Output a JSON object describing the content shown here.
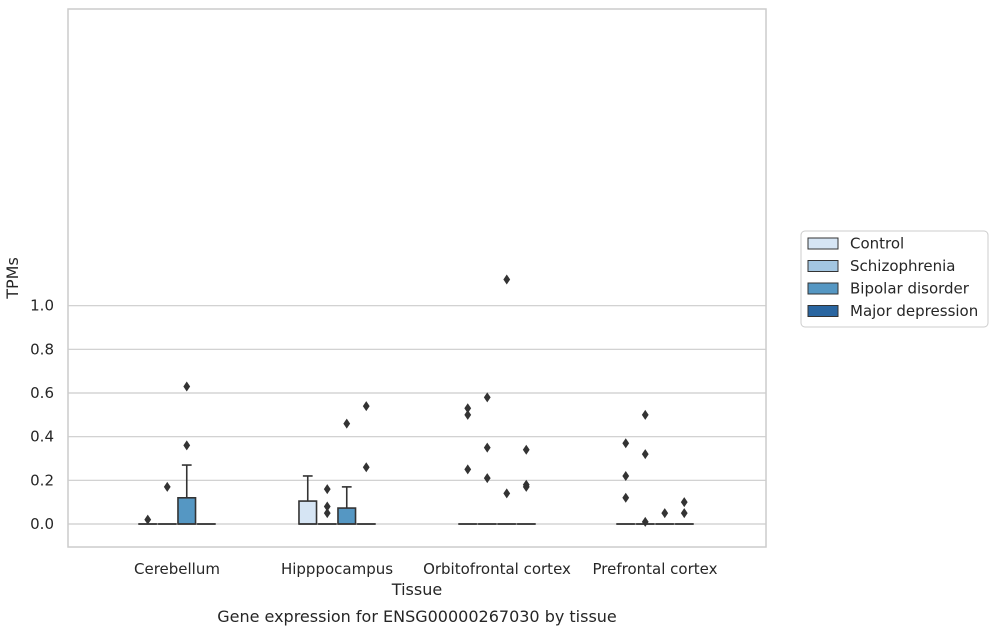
{
  "caption": "Gene expression for ENSG00000267030 by tissue",
  "chart_data": {
    "type": "box",
    "xlabel": "Tissue",
    "ylabel": "TPMs",
    "ylim": [
      -0.055,
      1.17
    ],
    "yticks": [
      0.0,
      0.2,
      0.4,
      0.6,
      0.8,
      1.0
    ],
    "ytick_labels": [
      "0.0",
      "0.2",
      "0.4",
      "0.6",
      "0.8",
      "1.0"
    ],
    "grid": true,
    "legend_position": "right",
    "categories": [
      "Cerebellum",
      "Hipppocampus",
      "Orbitofrontal cortex",
      "Prefrontal cortex"
    ],
    "series": [
      {
        "name": "Control",
        "color": "#d6e5f4",
        "boxes": [
          {
            "q1": 0,
            "median": 0,
            "q3": 0,
            "whisker_low": 0,
            "whisker_high": 0,
            "outliers": [
              0.02
            ]
          },
          {
            "q1": 0,
            "median": 0,
            "q3": 0.105,
            "whisker_low": 0,
            "whisker_high": 0.22,
            "outliers": []
          },
          {
            "q1": 0,
            "median": 0,
            "q3": 0,
            "whisker_low": 0,
            "whisker_high": 0,
            "outliers": [
              0.53,
              0.5,
              0.25
            ]
          },
          {
            "q1": 0,
            "median": 0,
            "q3": 0,
            "whisker_low": 0,
            "whisker_high": 0,
            "outliers": [
              0.37,
              0.22,
              0.12
            ]
          }
        ]
      },
      {
        "name": "Schizophrenia",
        "color": "#a3c6e1",
        "boxes": [
          {
            "q1": 0,
            "median": 0,
            "q3": 0,
            "whisker_low": 0,
            "whisker_high": 0,
            "outliers": [
              0.17
            ]
          },
          {
            "q1": 0,
            "median": 0,
            "q3": 0,
            "whisker_low": 0,
            "whisker_high": 0,
            "outliers": [
              0.16,
              0.08,
              0.05
            ]
          },
          {
            "q1": 0,
            "median": 0,
            "q3": 0,
            "whisker_low": 0,
            "whisker_high": 0,
            "outliers": [
              0.58,
              0.35,
              0.21
            ]
          },
          {
            "q1": 0,
            "median": 0,
            "q3": 0,
            "whisker_low": 0,
            "whisker_high": 0,
            "outliers": [
              0.5,
              0.32,
              0.01
            ]
          }
        ]
      },
      {
        "name": "Bipolar disorder",
        "color": "#5597c3",
        "boxes": [
          {
            "q1": 0,
            "median": 0,
            "q3": 0.12,
            "whisker_low": 0,
            "whisker_high": 0.27,
            "outliers": [
              0.63,
              0.36
            ]
          },
          {
            "q1": 0,
            "median": 0,
            "q3": 0.073,
            "whisker_low": 0,
            "whisker_high": 0.17,
            "outliers": [
              0.46
            ]
          },
          {
            "q1": 0,
            "median": 0,
            "q3": 0,
            "whisker_low": 0,
            "whisker_high": 0,
            "outliers": [
              1.12,
              0.14
            ]
          },
          {
            "q1": 0,
            "median": 0,
            "q3": 0,
            "whisker_low": 0,
            "whisker_high": 0,
            "outliers": [
              0.05
            ]
          }
        ]
      },
      {
        "name": "Major depression",
        "color": "#2a66a1",
        "boxes": [
          {
            "q1": 0,
            "median": 0,
            "q3": 0,
            "whisker_low": 0,
            "whisker_high": 0,
            "outliers": []
          },
          {
            "q1": 0,
            "median": 0,
            "q3": 0,
            "whisker_low": 0,
            "whisker_high": 0,
            "outliers": [
              0.54,
              0.26
            ]
          },
          {
            "q1": 0,
            "median": 0,
            "q3": 0,
            "whisker_low": 0,
            "whisker_high": 0,
            "outliers": [
              0.34,
              0.18,
              0.17
            ]
          },
          {
            "q1": 0,
            "median": 0,
            "q3": 0,
            "whisker_low": 0,
            "whisker_high": 0,
            "outliers": [
              0.1,
              0.05
            ]
          }
        ]
      }
    ]
  }
}
